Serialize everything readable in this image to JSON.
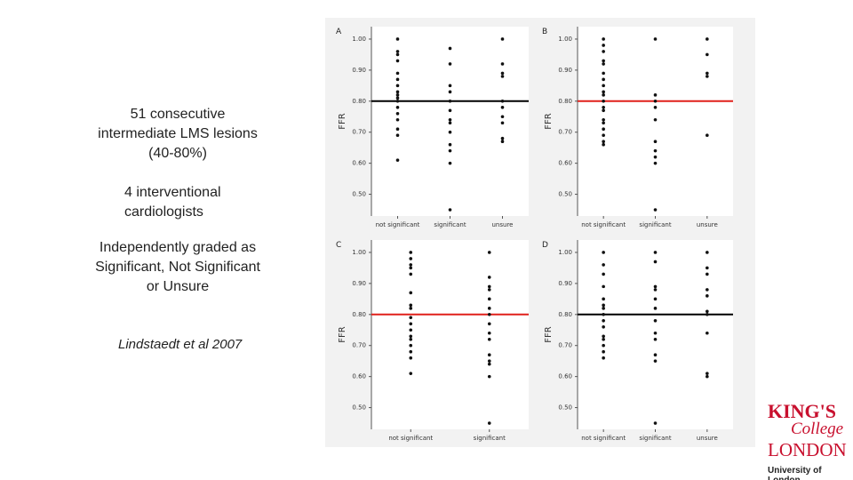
{
  "slide": {
    "intro": "51 consecutive intermediate LMS lesions (40-80%)",
    "raters": "4 interventional cardiologists",
    "grading": "Independently graded as Significant, Not Significant or Unsure",
    "citation": "Lindstaedt et al 2007",
    "logo": {
      "line1": "KING'S",
      "line2": "College",
      "line3": "LONDON",
      "line4": "University of London"
    }
  },
  "chart_data": [
    {
      "type": "strip",
      "panel": "A",
      "y_label": "FFR",
      "ylim": [
        0.43,
        1.04
      ],
      "yticks": [
        {
          "value": 1,
          "label": "1.00"
        },
        {
          "value": 0.9,
          "label": "0.90"
        },
        {
          "value": 0.8,
          "label": "0.80"
        },
        {
          "value": 0.7,
          "label": "0.70"
        },
        {
          "value": 0.6,
          "label": "0.60"
        },
        {
          "value": 0.5,
          "label": "0.50"
        }
      ],
      "reference_line": 0.8,
      "reference_color": "#000000",
      "groups": [
        {
          "name": "not significant",
          "values": [
            1.0,
            0.96,
            0.95,
            0.93,
            0.89,
            0.87,
            0.85,
            0.83,
            0.82,
            0.81,
            0.8,
            0.78,
            0.76,
            0.74,
            0.71,
            0.69,
            0.61
          ]
        },
        {
          "name": "significant",
          "values": [
            0.97,
            0.92,
            0.85,
            0.83,
            0.8,
            0.77,
            0.74,
            0.73,
            0.7,
            0.66,
            0.64,
            0.6,
            0.45
          ]
        },
        {
          "name": "unsure",
          "values": [
            1.0,
            0.92,
            0.89,
            0.88,
            0.8,
            0.78,
            0.75,
            0.73,
            0.68,
            0.67
          ]
        }
      ]
    },
    {
      "type": "strip",
      "panel": "B",
      "y_label": "FFR",
      "ylim": [
        0.43,
        1.04
      ],
      "yticks": [
        {
          "value": 1,
          "label": "1.00"
        },
        {
          "value": 0.9,
          "label": "0.90"
        },
        {
          "value": 0.8,
          "label": "0.80"
        },
        {
          "value": 0.7,
          "label": "0.70"
        },
        {
          "value": 0.6,
          "label": "0.60"
        },
        {
          "value": 0.5,
          "label": "0.50"
        }
      ],
      "reference_line": 0.8,
      "reference_color": "#e0201b",
      "groups": [
        {
          "name": "not significant",
          "values": [
            1.0,
            0.98,
            0.96,
            0.93,
            0.92,
            0.89,
            0.87,
            0.85,
            0.83,
            0.82,
            0.8,
            0.78,
            0.77,
            0.74,
            0.73,
            0.71,
            0.69,
            0.67,
            0.66
          ]
        },
        {
          "name": "significant",
          "values": [
            1.0,
            0.82,
            0.8,
            0.78,
            0.74,
            0.67,
            0.64,
            0.62,
            0.6,
            0.45
          ]
        },
        {
          "name": "unsure",
          "values": [
            1.0,
            0.95,
            0.89,
            0.88,
            0.69
          ]
        }
      ]
    },
    {
      "type": "strip",
      "panel": "C",
      "y_label": "FFR",
      "ylim": [
        0.43,
        1.04
      ],
      "yticks": [
        {
          "value": 1,
          "label": "1.00"
        },
        {
          "value": 0.9,
          "label": "0.90"
        },
        {
          "value": 0.8,
          "label": "0.80"
        },
        {
          "value": 0.7,
          "label": "0.70"
        },
        {
          "value": 0.6,
          "label": "0.60"
        },
        {
          "value": 0.5,
          "label": "0.50"
        }
      ],
      "reference_line": 0.8,
      "reference_color": "#e0201b",
      "groups": [
        {
          "name": "not significant",
          "values": [
            1.0,
            0.98,
            0.96,
            0.95,
            0.93,
            0.87,
            0.83,
            0.82,
            0.79,
            0.77,
            0.75,
            0.73,
            0.72,
            0.7,
            0.68,
            0.66,
            0.61
          ]
        },
        {
          "name": "significant",
          "values": [
            1.0,
            0.92,
            0.89,
            0.88,
            0.85,
            0.82,
            0.8,
            0.77,
            0.74,
            0.72,
            0.67,
            0.65,
            0.64,
            0.6,
            0.45
          ]
        }
      ]
    },
    {
      "type": "strip",
      "panel": "D",
      "y_label": "FFR",
      "ylim": [
        0.43,
        1.04
      ],
      "yticks": [
        {
          "value": 1,
          "label": "1.00"
        },
        {
          "value": 0.9,
          "label": "0.90"
        },
        {
          "value": 0.8,
          "label": "0.80"
        },
        {
          "value": 0.7,
          "label": "0.70"
        },
        {
          "value": 0.6,
          "label": "0.60"
        },
        {
          "value": 0.5,
          "label": "0.50"
        }
      ],
      "reference_line": 0.8,
      "reference_color": "#000000",
      "groups": [
        {
          "name": "not significant",
          "values": [
            1.0,
            0.96,
            0.93,
            0.89,
            0.85,
            0.83,
            0.82,
            0.8,
            0.78,
            0.76,
            0.73,
            0.72,
            0.7,
            0.68,
            0.66
          ]
        },
        {
          "name": "significant",
          "values": [
            1.0,
            0.97,
            0.89,
            0.88,
            0.85,
            0.82,
            0.78,
            0.74,
            0.72,
            0.67,
            0.65,
            0.45
          ]
        },
        {
          "name": "unsure",
          "values": [
            1.0,
            0.95,
            0.93,
            0.88,
            0.86,
            0.81,
            0.8,
            0.74,
            0.61,
            0.6
          ]
        }
      ]
    }
  ]
}
